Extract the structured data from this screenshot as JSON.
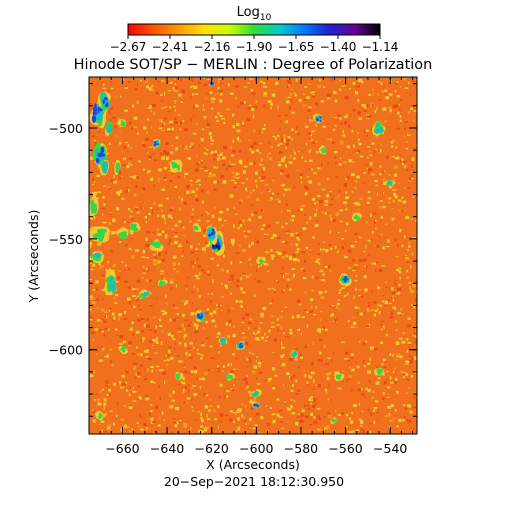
{
  "colorbar": {
    "title_main": "Log",
    "title_sub": "10",
    "tick_labels": [
      "−2.67",
      "−2.41",
      "−2.16",
      "−1.90",
      "−1.65",
      "−1.40",
      "−1.14"
    ],
    "gradient_colors": [
      "#ff0000",
      "#ff5500",
      "#ff9900",
      "#ffdd00",
      "#ccff00",
      "#33dd33",
      "#00cccc",
      "#0077ff",
      "#2222cc",
      "#660099",
      "#000000"
    ]
  },
  "title": "Hinode SOT/SP − MERLIN : Degree of Polarization",
  "x_axis": {
    "label": "X (Arcseconds)",
    "range": [
      -675,
      -528
    ],
    "ticks": [
      -660,
      -640,
      -620,
      -600,
      -580,
      -560,
      -540
    ]
  },
  "y_axis": {
    "label": "Y (Arcseconds)",
    "range": [
      -638,
      -477
    ],
    "ticks": [
      -500,
      -550,
      -600
    ]
  },
  "timestamp": "20−Sep−2021 18:12:30.950",
  "map_palette": {
    "base": "#f0701e",
    "yellow": "#f4c830",
    "green": "#38d44a",
    "cyan": "#20b8c8",
    "blue": "#1a4ad8",
    "dark": "#1a1870"
  }
}
